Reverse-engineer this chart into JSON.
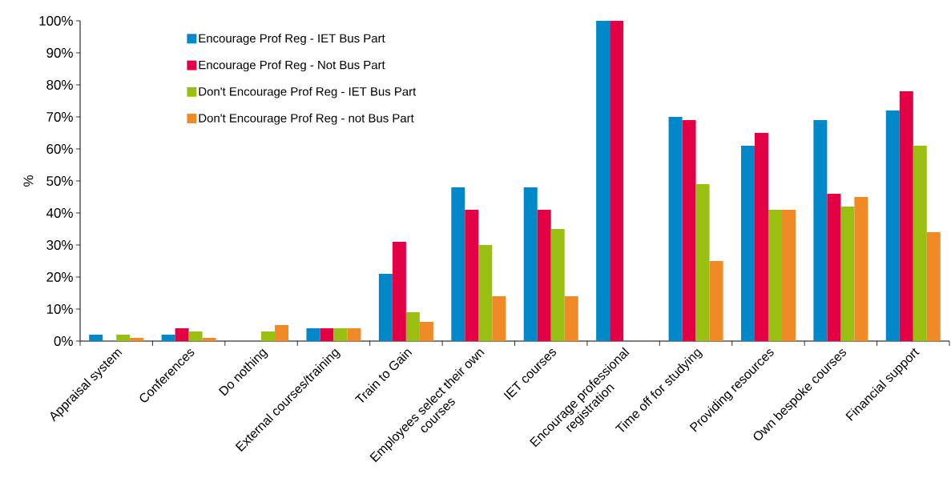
{
  "chart_data": {
    "type": "bar",
    "ylabel": "%",
    "categories": [
      "Appraisal system",
      "Conferences",
      "Do nothing",
      "External courses/training",
      "Train to Gain",
      "Employees select their own courses",
      "IET courses",
      "Encourage professional registration",
      "Time off for studying",
      "Providing resources",
      "Own bespoke courses",
      "Financial support"
    ],
    "series": [
      {
        "name": "Encourage Prof Reg - IET  Bus Part",
        "color": "#0088c9",
        "values": [
          2,
          2,
          0,
          4,
          21,
          48,
          48,
          100,
          70,
          61,
          69,
          72
        ]
      },
      {
        "name": "Encourage Prof Reg - Not Bus Part",
        "color": "#e30045",
        "values": [
          0,
          4,
          0,
          4,
          31,
          41,
          41,
          100,
          69,
          65,
          46,
          78
        ]
      },
      {
        "name": "Don't Encourage Prof Reg - IET  Bus Part",
        "color": "#99bf12",
        "values": [
          2,
          3,
          3,
          4,
          9,
          30,
          35,
          0,
          49,
          41,
          42,
          61
        ]
      },
      {
        "name": "Don't Encourage Prof Reg - not Bus Part",
        "color": "#f08a26",
        "values": [
          1,
          1,
          5,
          4,
          6,
          14,
          14,
          0,
          25,
          41,
          45,
          34
        ]
      }
    ],
    "ylim": [
      0,
      100
    ],
    "yticks": [
      {
        "value": 0,
        "label": "0%"
      },
      {
        "value": 10,
        "label": "10%"
      },
      {
        "value": 20,
        "label": "20%"
      },
      {
        "value": 30,
        "label": "30%"
      },
      {
        "value": 40,
        "label": "40%"
      },
      {
        "value": 50,
        "label": "50%"
      },
      {
        "value": 60,
        "label": "60%"
      },
      {
        "value": 70,
        "label": "70%"
      },
      {
        "value": 80,
        "label": "80%"
      },
      {
        "value": 90,
        "label": "90%"
      },
      {
        "value": 100,
        "label": "100%"
      }
    ],
    "legend": "top left",
    "grid": false
  }
}
